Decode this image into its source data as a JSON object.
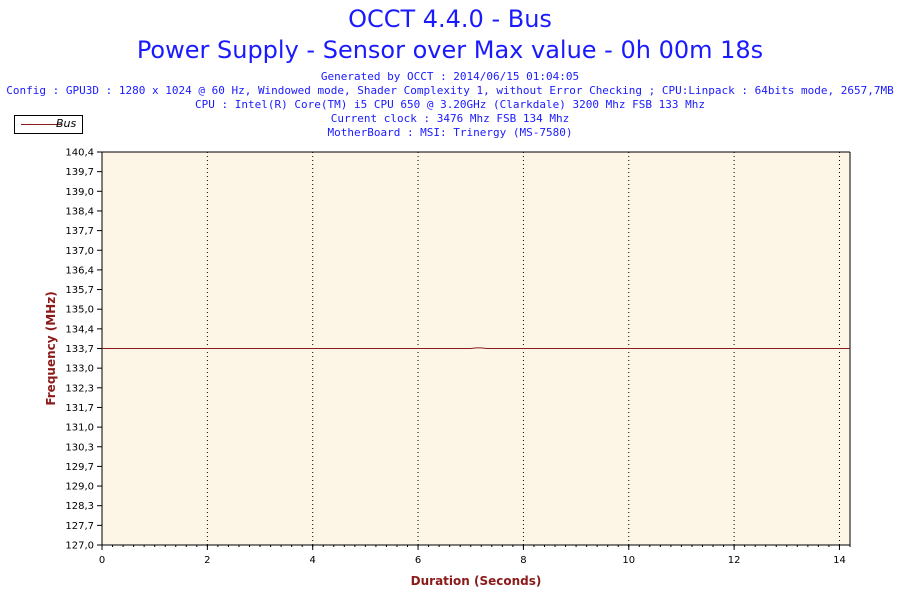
{
  "header": {
    "title": "OCCT 4.4.0 - Bus",
    "subtitle": "Power Supply - Sensor over Max value - 0h 00m 18s",
    "info_lines": [
      "Generated by OCCT : 2014/06/15 01:04:05",
      "Config : GPU3D : 1280 x 1024 @ 60 Hz, Windowed mode, Shader Complexity 1, without Error Checking ; CPU:Linpack : 64bits mode, 2657,7MB",
      "CPU : Intel(R) Core(TM) i5 CPU 650 @ 3.20GHz (Clarkdale) 3200 Mhz FSB 133 Mhz",
      "Current clock : 3476 Mhz FSB 134 Mhz",
      "MotherBoard : MSI: Trinergy (MS-7580)"
    ]
  },
  "colors": {
    "title": "#1a1aff",
    "axis_label": "#8b1a1a",
    "plot_background": "#fdf5e6",
    "series_line": "#8b1a1a"
  },
  "chart_data": {
    "type": "line",
    "title": "OCCT 4.4.0 - Bus",
    "xlabel": "Duration (Seconds)",
    "ylabel": "Frequency (MHz)",
    "xlim": [
      0,
      14.2
    ],
    "ylim": [
      127.0,
      140.4
    ],
    "x_ticks": [
      "0",
      "2",
      "4",
      "6",
      "8",
      "10",
      "12",
      "14"
    ],
    "x_tick_values": [
      0,
      2,
      4,
      6,
      8,
      10,
      12,
      14
    ],
    "y_ticks": [
      "127,0",
      "127,7",
      "128,3",
      "129,0",
      "129,7",
      "130,3",
      "131,0",
      "131,7",
      "132,3",
      "133,0",
      "133,7",
      "134,4",
      "135,0",
      "135,7",
      "136,4",
      "137,0",
      "137,7",
      "138,4",
      "139,0",
      "139,7",
      "140,4"
    ],
    "grid": "vertical dotted",
    "legend_placement": "top-left",
    "series": [
      {
        "name": "Bus",
        "x": [
          0,
          7.0,
          7.1,
          7.2,
          7.3,
          14.2
        ],
        "y": [
          133.7,
          133.7,
          133.72,
          133.72,
          133.7,
          133.7
        ]
      }
    ]
  }
}
